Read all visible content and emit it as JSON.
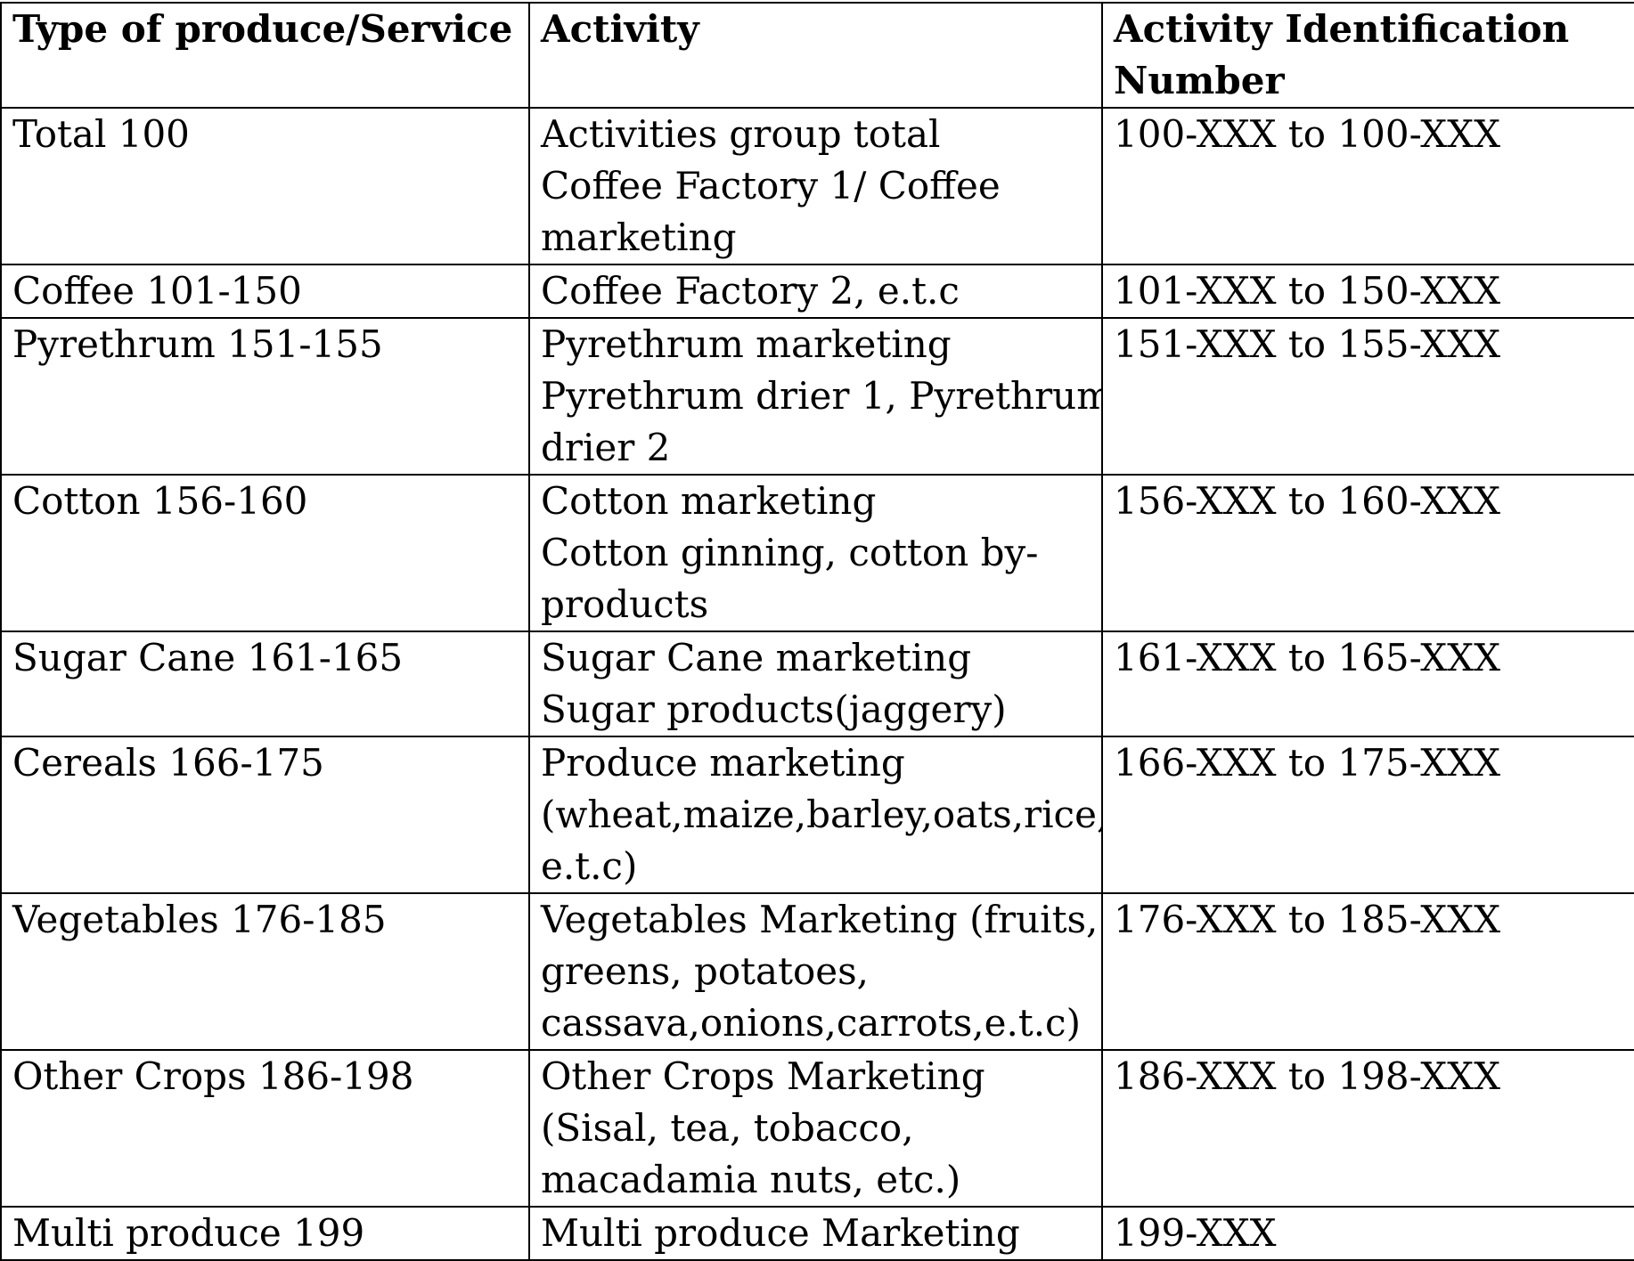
{
  "table": {
    "headers": [
      [
        "Type of produce/Service"
      ],
      [
        "Activity"
      ],
      [
        "Activity Identification",
        "Number"
      ]
    ],
    "rows": [
      {
        "type": "Total 100",
        "activity_lines": [
          "Activities group total",
          "Coffee Factory 1/ Coffee",
          "marketing"
        ],
        "id": "100-XXX to 100-XXX"
      },
      {
        "type": "Coffee 101-150",
        "activity_lines": [
          "Coffee Factory 2, e.t.c"
        ],
        "id": "101-XXX to 150-XXX"
      },
      {
        "type": "Pyrethrum 151-155",
        "activity_lines": [
          "Pyrethrum marketing",
          "Pyrethrum drier 1, Pyrethrum",
          "drier 2"
        ],
        "id": "151-XXX to 155-XXX"
      },
      {
        "type": "Cotton 156-160",
        "activity_lines": [
          "Cotton marketing",
          "Cotton ginning, cotton by-",
          "products"
        ],
        "id": "156-XXX to 160-XXX"
      },
      {
        "type": "Sugar Cane 161-165",
        "activity_lines": [
          "Sugar Cane marketing",
          "Sugar products(jaggery)"
        ],
        "id": "161-XXX to 165-XXX"
      },
      {
        "type": "Cereals 166-175",
        "activity_lines": [
          "Produce marketing",
          "(wheat,maize,barley,oats,rice,",
          "e.t.c)"
        ],
        "id": "166-XXX to 175-XXX"
      },
      {
        "type": "Vegetables 176-185",
        "activity_lines": [
          "Vegetables Marketing (fruits,",
          "greens, potatoes,",
          "cassava,onions,carrots,e.t.c)"
        ],
        "id": "176-XXX to 185-XXX"
      },
      {
        "type": "Other Crops 186-198",
        "activity_lines": [
          "Other Crops Marketing",
          "(Sisal, tea, tobacco,",
          "macadamia nuts, etc.)"
        ],
        "id": "186-XXX to 198-XXX"
      },
      {
        "type": "Multi produce 199",
        "activity_lines": [
          "Multi produce Marketing"
        ],
        "id": "199-XXX"
      }
    ]
  }
}
